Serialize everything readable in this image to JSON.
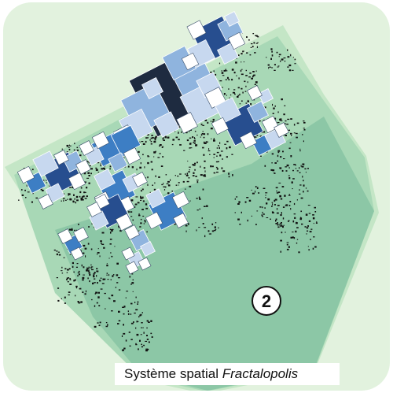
{
  "map": {
    "panel_number": "2",
    "caption_text": "Système spatial",
    "caption_italic": "Fractalopolis",
    "colors": {
      "background": "#e2f2de",
      "zone_light": "#c4e6c6",
      "zone_mid": "#a8d8b6",
      "zone_dark": "#8cc7a6",
      "square_pale": "#c7d8ef",
      "square_light": "#8fb4de",
      "square_mid": "#3d7ec4",
      "square_dark": "#274e8f",
      "square_darkest": "#1e2b40",
      "buildings": "#111111"
    }
  }
}
